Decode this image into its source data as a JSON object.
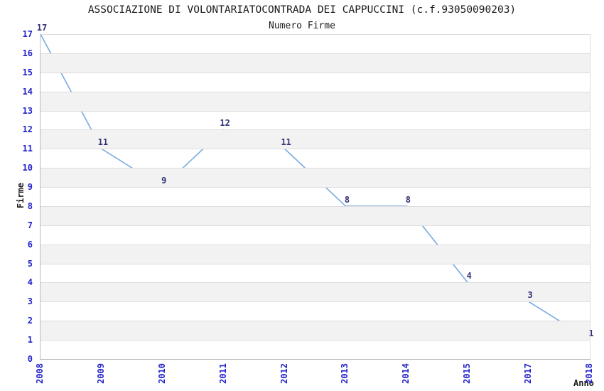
{
  "chart_data": {
    "type": "line",
    "title": "ASSOCIAZIONE DI VOLONTARIATOCONTRADA DEI CAPPUCCINI (c.f.93050090203)",
    "subtitle": "Numero Firme",
    "xlabel": "Anno",
    "ylabel": "Firme",
    "categories": [
      "2008",
      "2009",
      "2010",
      "2011",
      "2012",
      "2013",
      "2014",
      "2015",
      "2017",
      "2018"
    ],
    "values": [
      17,
      11,
      9,
      12,
      11,
      8,
      8,
      4,
      3,
      1
    ],
    "ylim": [
      0,
      17
    ],
    "ytick_step": 1,
    "grid": "horizontal-bands",
    "legend": "none",
    "point_labels_visible": true,
    "colors": {
      "line": "#7EAEE0",
      "tick_label": "#2222CC",
      "point_label": "#333377",
      "band": "#F2F2F2",
      "gridline": "#DDDDDD",
      "axis_line": "#BBBBBB",
      "text": "#1A1A1A"
    }
  }
}
